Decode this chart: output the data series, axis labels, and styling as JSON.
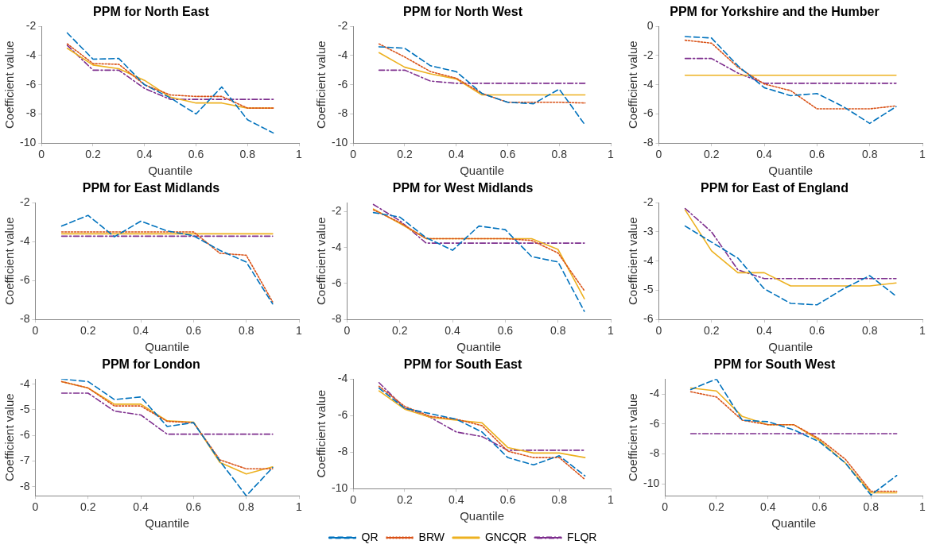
{
  "chart_data": [
    {
      "type": "line",
      "title": "PPM for North East",
      "xlabel": "Quantile",
      "ylabel": "Coefficient value",
      "x": [
        0.1,
        0.2,
        0.3,
        0.4,
        0.5,
        0.6,
        0.7,
        0.8,
        0.9
      ],
      "xlim": [
        0,
        1
      ],
      "xticks": [
        0,
        0.2,
        0.4,
        0.6,
        0.8,
        1
      ],
      "ylim": [
        -10,
        -2
      ],
      "yticks": [
        -10,
        -8,
        -6,
        -4,
        -2
      ],
      "marker": "none",
      "series": [
        {
          "color": "#0072bd",
          "line_style": "dashed",
          "values": [
            -2.45,
            -4.25,
            -4.2,
            -6.0,
            -6.9,
            -8.0,
            -6.15,
            -8.4,
            -9.3
          ]
        },
        {
          "color": "#d95319",
          "line_style": "dotted",
          "values": [
            -3.2,
            -4.55,
            -4.6,
            -6.0,
            -6.7,
            -6.8,
            -6.8,
            -7.6,
            -7.6
          ]
        },
        {
          "color": "#edb120",
          "line_style": "solid",
          "values": [
            -3.5,
            -4.65,
            -4.9,
            -5.7,
            -6.85,
            -7.25,
            -7.25,
            -7.6,
            -7.6
          ]
        },
        {
          "color": "#7e2f8e",
          "line_style": "dashdot",
          "values": [
            -3.3,
            -5.0,
            -5.0,
            -6.25,
            -7.0,
            -7.0,
            -7.0,
            -7.0,
            -7.0
          ]
        }
      ]
    },
    {
      "type": "line",
      "title": "PPM for North West",
      "xlabel": "Quantile",
      "ylabel": "Coefficient value",
      "x": [
        0.1,
        0.2,
        0.3,
        0.4,
        0.5,
        0.6,
        0.7,
        0.8,
        0.9
      ],
      "xlim": [
        0,
        1
      ],
      "xticks": [
        0,
        0.2,
        0.4,
        0.6,
        0.8,
        1
      ],
      "ylim": [
        -10,
        -2
      ],
      "yticks": [
        -10,
        -8,
        -6,
        -4,
        -2
      ],
      "marker": "none",
      "series": [
        {
          "color": "#0072bd",
          "line_style": "dashed",
          "values": [
            -3.4,
            -3.5,
            -4.7,
            -5.1,
            -6.6,
            -7.2,
            -7.3,
            -6.3,
            -8.75
          ]
        },
        {
          "color": "#d95319",
          "line_style": "dotted",
          "values": [
            -3.2,
            -4.1,
            -5.1,
            -5.55,
            -6.6,
            -7.2,
            -7.2,
            -7.2,
            -7.25
          ]
        },
        {
          "color": "#edb120",
          "line_style": "solid",
          "values": [
            -3.8,
            -4.8,
            -5.25,
            -5.6,
            -6.7,
            -6.7,
            -6.7,
            -6.7,
            -6.7
          ]
        },
        {
          "color": "#7e2f8e",
          "line_style": "dashdot",
          "values": [
            -5.0,
            -5.0,
            -5.75,
            -5.9,
            -5.9,
            -5.9,
            -5.9,
            -5.9,
            -5.9
          ]
        }
      ]
    },
    {
      "type": "line",
      "title": "PPM for Yorkshire and the Humber",
      "xlabel": "Quantile",
      "ylabel": "Coefficient value",
      "x": [
        0.1,
        0.2,
        0.3,
        0.4,
        0.5,
        0.6,
        0.7,
        0.8,
        0.9
      ],
      "xlim": [
        0,
        1
      ],
      "xticks": [
        0,
        0.2,
        0.4,
        0.6,
        0.8,
        1
      ],
      "ylim": [
        -8,
        0
      ],
      "yticks": [
        -8,
        -6,
        -4,
        -2,
        0
      ],
      "marker": "none",
      "series": [
        {
          "color": "#0072bd",
          "line_style": "dashed",
          "values": [
            -0.7,
            -0.8,
            -2.7,
            -4.2,
            -4.75,
            -4.6,
            -5.5,
            -6.65,
            -5.5
          ]
        },
        {
          "color": "#d95319",
          "line_style": "dotted",
          "values": [
            -0.95,
            -1.15,
            -2.8,
            -3.95,
            -4.4,
            -5.65,
            -5.65,
            -5.65,
            -5.45
          ]
        },
        {
          "color": "#edb120",
          "line_style": "solid",
          "values": [
            -3.35,
            -3.35,
            -3.35,
            -3.35,
            -3.35,
            -3.35,
            -3.35,
            -3.35,
            -3.35
          ]
        },
        {
          "color": "#7e2f8e",
          "line_style": "dashdot",
          "values": [
            -2.2,
            -2.2,
            -3.2,
            -3.9,
            -3.9,
            -3.9,
            -3.9,
            -3.9,
            -3.9
          ]
        }
      ]
    },
    {
      "type": "line",
      "title": "PPM for East Midlands",
      "xlabel": "Quantile",
      "ylabel": "Coefficient value",
      "x": [
        0.1,
        0.2,
        0.3,
        0.4,
        0.5,
        0.6,
        0.7,
        0.8,
        0.9
      ],
      "xlim": [
        0,
        1
      ],
      "xticks": [
        0,
        0.2,
        0.4,
        0.6,
        0.8,
        1
      ],
      "ylim": [
        -8,
        -2
      ],
      "yticks": [
        -8,
        -6,
        -4,
        -2
      ],
      "marker": "none",
      "series": [
        {
          "color": "#0072bd",
          "line_style": "dashed",
          "values": [
            -3.2,
            -2.65,
            -3.75,
            -2.95,
            -3.45,
            -3.7,
            -4.45,
            -5.05,
            -7.2
          ]
        },
        {
          "color": "#d95319",
          "line_style": "dotted",
          "values": [
            -3.5,
            -3.5,
            -3.5,
            -3.5,
            -3.5,
            -3.5,
            -4.6,
            -4.7,
            -7.1
          ]
        },
        {
          "color": "#edb120",
          "line_style": "solid",
          "values": [
            -3.6,
            -3.6,
            -3.6,
            -3.6,
            -3.6,
            -3.6,
            -3.6,
            -3.6,
            -3.6
          ]
        },
        {
          "color": "#7e2f8e",
          "line_style": "dashdot",
          "values": [
            -3.72,
            -3.72,
            -3.72,
            -3.72,
            -3.72,
            -3.72,
            -3.72,
            -3.72,
            -3.72
          ]
        }
      ]
    },
    {
      "type": "line",
      "title": "PPM for West Midlands",
      "xlabel": "Quantile",
      "ylabel": "Coefficient value",
      "x": [
        0.1,
        0.2,
        0.3,
        0.4,
        0.5,
        0.6,
        0.7,
        0.8,
        0.9
      ],
      "xlim": [
        0,
        1
      ],
      "xticks": [
        0,
        0.2,
        0.4,
        0.6,
        0.8,
        1
      ],
      "ylim": [
        -8,
        -1.5
      ],
      "yticks": [
        -8,
        -6,
        -4,
        -2
      ],
      "marker": "none",
      "series": [
        {
          "color": "#0072bd",
          "line_style": "dashed",
          "values": [
            -2.05,
            -2.3,
            -3.45,
            -4.15,
            -2.8,
            -3.0,
            -4.5,
            -4.8,
            -7.55
          ]
        },
        {
          "color": "#d95319",
          "line_style": "dotted",
          "values": [
            -1.9,
            -2.6,
            -3.5,
            -3.5,
            -3.5,
            -3.5,
            -3.6,
            -4.3,
            -6.4
          ]
        },
        {
          "color": "#edb120",
          "line_style": "solid",
          "values": [
            -1.85,
            -2.65,
            -3.5,
            -3.5,
            -3.5,
            -3.5,
            -3.5,
            -4.1,
            -6.85
          ]
        },
        {
          "color": "#7e2f8e",
          "line_style": "dashdot",
          "values": [
            -1.6,
            -2.5,
            -3.75,
            -3.75,
            -3.75,
            -3.75,
            -3.75,
            -3.75,
            -3.75
          ]
        }
      ]
    },
    {
      "type": "line",
      "title": "PPM for East of England",
      "xlabel": "Quantile",
      "ylabel": "Coefficient value",
      "x": [
        0.1,
        0.2,
        0.3,
        0.4,
        0.5,
        0.6,
        0.7,
        0.8,
        0.9
      ],
      "xlim": [
        0,
        1
      ],
      "xticks": [
        0,
        0.2,
        0.4,
        0.6,
        0.8,
        1
      ],
      "ylim": [
        -6,
        -2
      ],
      "yticks": [
        -6,
        -5,
        -4,
        -3,
        -2
      ],
      "marker": "none",
      "series": [
        {
          "color": "#0072bd",
          "line_style": "dashed",
          "values": [
            -2.8,
            -3.35,
            -3.9,
            -4.95,
            -5.45,
            -5.5,
            -4.95,
            -4.5,
            -5.2
          ]
        },
        {
          "color": "#d95319",
          "line_style": "dotted",
          "values": [
            null,
            null,
            null,
            null,
            null,
            null,
            null,
            null,
            null
          ]
        },
        {
          "color": "#edb120",
          "line_style": "solid",
          "values": [
            -2.25,
            -3.65,
            -4.4,
            -4.4,
            -4.85,
            -4.85,
            -4.85,
            -4.85,
            -4.75
          ]
        },
        {
          "color": "#7e2f8e",
          "line_style": "dashdot",
          "values": [
            -2.2,
            -3.0,
            -4.3,
            -4.6,
            -4.6,
            -4.6,
            -4.6,
            -4.6,
            -4.6
          ]
        }
      ]
    },
    {
      "type": "line",
      "title": "PPM for London",
      "xlabel": "Quantile",
      "ylabel": "Coefficient value",
      "x": [
        0.1,
        0.2,
        0.3,
        0.4,
        0.5,
        0.6,
        0.7,
        0.8,
        0.9
      ],
      "xlim": [
        0,
        1
      ],
      "xticks": [
        0,
        0.2,
        0.4,
        0.6,
        0.8,
        1
      ],
      "ylim": [
        -8.35,
        -3.8
      ],
      "yticks": [
        -8,
        -7,
        -6,
        -5,
        -4
      ],
      "marker": "none",
      "series": [
        {
          "color": "#0072bd",
          "line_style": "dashed",
          "values": [
            -3.8,
            -3.9,
            -4.6,
            -4.5,
            -5.65,
            -5.5,
            -7.0,
            -8.35,
            -7.25
          ]
        },
        {
          "color": "#d95319",
          "line_style": "dotted",
          "values": [
            -3.9,
            -4.15,
            -4.85,
            -4.85,
            -5.45,
            -5.5,
            -6.95,
            -7.3,
            -7.3
          ]
        },
        {
          "color": "#edb120",
          "line_style": "solid",
          "values": [
            -3.9,
            -4.15,
            -4.78,
            -4.78,
            -5.43,
            -5.48,
            -7.05,
            -7.5,
            -7.22
          ]
        },
        {
          "color": "#7e2f8e",
          "line_style": "dashdot",
          "values": [
            -4.35,
            -4.35,
            -5.05,
            -5.2,
            -5.95,
            -5.95,
            -5.95,
            -5.95,
            -5.95
          ]
        }
      ]
    },
    {
      "type": "line",
      "title": "PPM for South East",
      "xlabel": "Quantile",
      "ylabel": "Coefficient value",
      "x": [
        0.1,
        0.2,
        0.3,
        0.4,
        0.5,
        0.6,
        0.7,
        0.8,
        0.9
      ],
      "xlim": [
        0,
        1
      ],
      "xticks": [
        0,
        0.2,
        0.4,
        0.6,
        0.8,
        1
      ],
      "ylim": [
        -10,
        -4
      ],
      "yticks": [
        -10,
        -8,
        -6,
        -4
      ],
      "marker": "none",
      "legend": "bottom",
      "series": [
        {
          "name": "QR",
          "color": "#0072bd",
          "line_style": "dashed",
          "values": [
            -4.5,
            -5.6,
            -5.9,
            -6.2,
            -6.9,
            -8.3,
            -8.7,
            -8.2,
            -9.3
          ]
        },
        {
          "name": "BRW",
          "color": "#d95319",
          "line_style": "dotted",
          "values": [
            -4.4,
            -5.5,
            -6.05,
            -6.2,
            -6.55,
            -7.95,
            -8.3,
            -8.3,
            -9.5
          ]
        },
        {
          "name": "GNCQR",
          "color": "#edb120",
          "line_style": "solid",
          "values": [
            -4.65,
            -5.65,
            -6.1,
            -6.25,
            -6.4,
            -7.75,
            -8.05,
            -8.05,
            -8.3
          ]
        },
        {
          "name": "FLQR",
          "color": "#7e2f8e",
          "line_style": "dashdot",
          "values": [
            -4.2,
            -5.6,
            -6.1,
            -6.9,
            -7.15,
            -7.9,
            -7.9,
            -7.9,
            -7.9
          ]
        }
      ]
    },
    {
      "type": "line",
      "title": "PPM for South West",
      "xlabel": "Quantile",
      "ylabel": "Coefficient value",
      "x": [
        0.1,
        0.2,
        0.3,
        0.4,
        0.5,
        0.6,
        0.7,
        0.8,
        0.9
      ],
      "xlim": [
        0,
        1
      ],
      "xticks": [
        0,
        0.2,
        0.4,
        0.6,
        0.8,
        1
      ],
      "ylim": [
        -10.8,
        -3
      ],
      "yticks": [
        -10,
        -8,
        -6,
        -4
      ],
      "marker": "none",
      "series": [
        {
          "color": "#0072bd",
          "line_style": "dashed",
          "values": [
            -3.7,
            -3.0,
            -5.75,
            -5.85,
            -6.4,
            -7.2,
            -8.6,
            -10.75,
            -9.45
          ]
        },
        {
          "color": "#d95319",
          "line_style": "dotted",
          "values": [
            -3.85,
            -4.2,
            -5.75,
            -6.05,
            -6.05,
            -7.0,
            -8.35,
            -10.5,
            -10.5
          ]
        },
        {
          "color": "#edb120",
          "line_style": "solid",
          "values": [
            -3.6,
            -3.8,
            -5.5,
            -6.05,
            -6.05,
            -7.1,
            -8.6,
            -10.6,
            -10.6
          ]
        },
        {
          "color": "#7e2f8e",
          "line_style": "dashdot",
          "values": [
            -6.65,
            -6.65,
            -6.65,
            -6.65,
            -6.65,
            -6.65,
            -6.65,
            -6.65,
            -6.65
          ]
        }
      ]
    }
  ]
}
